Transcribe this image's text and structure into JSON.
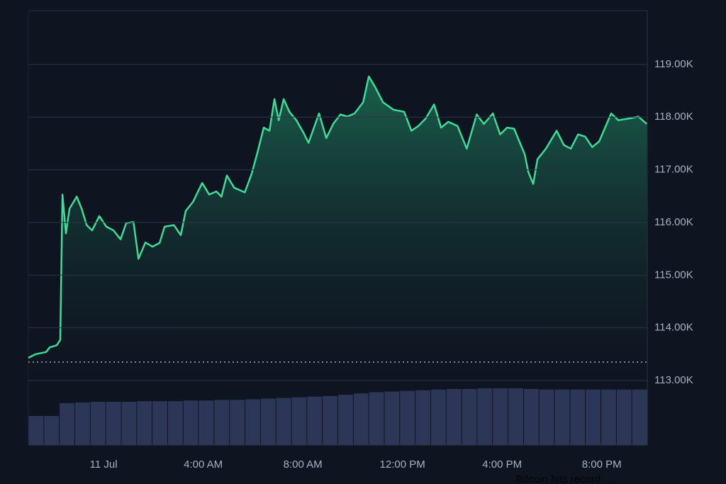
{
  "chart_data": {
    "type": "line",
    "annotation": "Bitcoin hits record ...",
    "x": [
      -3.02,
      -2.73,
      -2.31,
      -2.16,
      -1.88,
      -1.74,
      -1.65,
      -1.51,
      -1.37,
      -1.08,
      -0.88,
      -0.68,
      -0.46,
      -0.17,
      0.11,
      0.4,
      0.68,
      0.91,
      1.2,
      1.4,
      1.68,
      1.96,
      2.25,
      2.45,
      2.82,
      3.1,
      3.3,
      3.59,
      3.96,
      4.24,
      4.53,
      4.73,
      4.95,
      5.24,
      5.67,
      5.95,
      6.18,
      6.43,
      6.66,
      6.86,
      7.03,
      7.23,
      7.46,
      7.74,
      8.03,
      8.23,
      8.65,
      8.94,
      9.22,
      9.51,
      9.79,
      10.08,
      10.42,
      10.65,
      10.88,
      11.22,
      11.64,
      12.07,
      12.36,
      12.64,
      12.93,
      13.27,
      13.55,
      13.84,
      14.21,
      14.58,
      14.98,
      15.27,
      15.63,
      15.92,
      16.2,
      16.48,
      16.91,
      17.05,
      17.25,
      17.42,
      17.76,
      18.19,
      18.48,
      18.76,
      19.05,
      19.33,
      19.62,
      19.9,
      20.38,
      20.67,
      21.18,
      21.47,
      21.81
    ],
    "series": [
      {
        "color": "#3ddc97",
        "values": [
          113430,
          113500,
          113540,
          113630,
          113670,
          113770,
          116530,
          115790,
          116260,
          116490,
          116260,
          115950,
          115850,
          116120,
          115920,
          115850,
          115680,
          115990,
          116010,
          115310,
          115620,
          115540,
          115610,
          115920,
          115950,
          115760,
          116220,
          116390,
          116750,
          116530,
          116590,
          116490,
          116890,
          116660,
          116570,
          116930,
          117330,
          117800,
          117740,
          118340,
          117940,
          118340,
          118100,
          117940,
          117700,
          117510,
          118070,
          117600,
          117870,
          118050,
          118010,
          118070,
          118280,
          118770,
          118590,
          118280,
          118140,
          118100,
          117740,
          117830,
          117970,
          118240,
          117800,
          117910,
          117830,
          117400,
          118050,
          117870,
          118070,
          117670,
          117800,
          117780,
          117290,
          116960,
          116730,
          117200,
          117400,
          117740,
          117470,
          117400,
          117670,
          117630,
          117430,
          117540,
          118070,
          117940,
          117980,
          118010,
          117870
        ]
      }
    ],
    "reference_line": 113350,
    "volume": {
      "color": "#2c3657",
      "lim": [
        0,
        100
      ],
      "values": [
        45,
        45,
        65,
        66,
        67,
        67,
        67,
        68,
        68,
        68,
        69,
        69,
        70,
        70,
        71,
        72,
        73,
        74,
        75,
        76,
        78,
        80,
        82,
        83,
        84,
        85,
        86,
        87,
        87,
        88,
        88,
        88,
        87,
        86,
        86,
        86,
        86,
        86,
        86,
        86
      ]
    },
    "xlim": [
      -3.02,
      21.83
    ],
    "xticks": [
      {
        "value": 0,
        "label": "11 Jul"
      },
      {
        "value": 4,
        "label": "4:00 AM"
      },
      {
        "value": 8,
        "label": "8:00 AM"
      },
      {
        "value": 12,
        "label": "12:00 PM"
      },
      {
        "value": 16,
        "label": "4:00 PM"
      },
      {
        "value": 20,
        "label": "8:00 PM"
      }
    ],
    "ylim": [
      113000,
      120020
    ],
    "yticks": [
      {
        "value": 113000,
        "label": "113.00K"
      },
      {
        "value": 114000,
        "label": "114.00K"
      },
      {
        "value": 115000,
        "label": "115.00K"
      },
      {
        "value": 116000,
        "label": "116.00K"
      },
      {
        "value": 117000,
        "label": "117.00K"
      },
      {
        "value": 118000,
        "label": "118.00K"
      },
      {
        "value": 119000,
        "label": "119.00K"
      }
    ],
    "grid": true
  }
}
